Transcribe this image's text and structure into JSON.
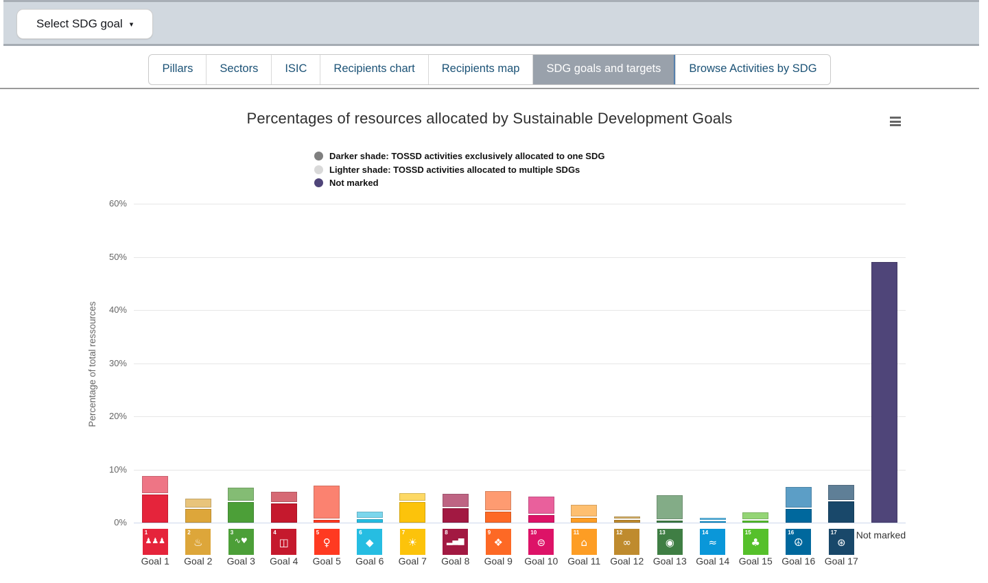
{
  "toolbar": {
    "select_sdg_label": "Select SDG goal",
    "caret": "▾"
  },
  "tabs": {
    "items": [
      {
        "label": "Pillars",
        "active": false
      },
      {
        "label": "Sectors",
        "active": false
      },
      {
        "label": "ISIC",
        "active": false
      },
      {
        "label": "Recipients chart",
        "active": false
      },
      {
        "label": "Recipients map",
        "active": false
      },
      {
        "label": "SDG goals and targets",
        "active": true
      },
      {
        "label": "Browse Activities by SDG",
        "active": false
      }
    ]
  },
  "chart": {
    "title": "Percentages of resources allocated by Sustainable Development Goals",
    "menu_icon": "hamburger-menu",
    "legend_items": [
      {
        "label": "Darker shade: TOSSD activities exclusively allocated to one SDG",
        "color": "#7f7f7f"
      },
      {
        "label": "Lighter shade: TOSSD activities allocated to multiple SDGs",
        "color": "#d9d9d9"
      },
      {
        "label": "Not marked",
        "color": "#4f4579"
      }
    ],
    "y_axis_title": "Percentage of total ressources",
    "y_ticks": [
      "0%",
      "10%",
      "20%",
      "30%",
      "40%",
      "50%",
      "60%"
    ]
  },
  "chart_data": {
    "type": "bar",
    "stacked": true,
    "title": "Percentages of resources allocated by Sustainable Development Goals",
    "xlabel": "",
    "ylabel": "Percentage of total ressources",
    "ylim": [
      0,
      60
    ],
    "unit": "percent of total resources",
    "legend_position": "top",
    "grid": true,
    "categories": [
      "Goal 1",
      "Goal 2",
      "Goal 3",
      "Goal 4",
      "Goal 5",
      "Goal 6",
      "Goal 7",
      "Goal 8",
      "Goal 9",
      "Goal 10",
      "Goal 11",
      "Goal 12",
      "Goal 13",
      "Goal 14",
      "Goal 15",
      "Goal 16",
      "Goal 17",
      "Not marked"
    ],
    "series": [
      {
        "name": "Darker shade: TOSSD activities exclusively allocated to one SDG",
        "values": [
          5.3,
          2.6,
          3.9,
          3.6,
          0.5,
          0.6,
          3.9,
          2.7,
          2.1,
          1.4,
          0.9,
          0.5,
          0.4,
          0.3,
          0.4,
          2.6,
          4.0,
          0
        ]
      },
      {
        "name": "Lighter shade: TOSSD activities allocated to multiple SDGs",
        "values": [
          3.2,
          1.7,
          2.4,
          1.9,
          6.2,
          1.2,
          1.4,
          2.4,
          3.6,
          3.2,
          2.2,
          0.4,
          4.5,
          0.3,
          1.3,
          3.9,
          2.9,
          0
        ]
      },
      {
        "name": "Not marked",
        "values": [
          0,
          0,
          0,
          0,
          0,
          0,
          0,
          0,
          0,
          0,
          0,
          0,
          0,
          0,
          0,
          0,
          0,
          49.0
        ]
      }
    ],
    "goals": [
      {
        "label": "Goal 1",
        "number": "1",
        "icon": "sdg1-people-icon",
        "glyph": "♟♟♟",
        "tile_color": "#E5243B",
        "darker": 5.3,
        "lighter": 3.2,
        "darker_color": "#E5243B",
        "lighter_color": "#EE7585"
      },
      {
        "label": "Goal 2",
        "number": "2",
        "icon": "sdg2-food-bowl-icon",
        "glyph": "♨",
        "tile_color": "#DDA63A",
        "darker": 2.6,
        "lighter": 1.7,
        "darker_color": "#DDA63A",
        "lighter_color": "#E8C47B"
      },
      {
        "label": "Goal 3",
        "number": "3",
        "icon": "sdg3-heartbeat-icon",
        "glyph": "∿♥",
        "tile_color": "#4C9F38",
        "darker": 3.9,
        "lighter": 2.4,
        "darker_color": "#4C9F38",
        "lighter_color": "#84BC74"
      },
      {
        "label": "Goal 4",
        "number": "4",
        "icon": "sdg4-open-book-icon",
        "glyph": "◫",
        "tile_color": "#C5192D",
        "darker": 3.6,
        "lighter": 1.9,
        "darker_color": "#C5192D",
        "lighter_color": "#D66974"
      },
      {
        "label": "Goal 5",
        "number": "5",
        "icon": "sdg5-gender-icon",
        "glyph": "♀",
        "tile_color": "#FF3A21",
        "darker": 0.5,
        "lighter": 6.2,
        "darker_color": "#FF3A21",
        "lighter_color": "#FB8270"
      },
      {
        "label": "Goal 6",
        "number": "6",
        "icon": "sdg6-water-drop-icon",
        "glyph": "◆",
        "tile_color": "#26BDE2",
        "darker": 0.6,
        "lighter": 1.2,
        "darker_color": "#26BDE2",
        "lighter_color": "#7BD6EC"
      },
      {
        "label": "Goal 7",
        "number": "7",
        "icon": "sdg7-sun-energy-icon",
        "glyph": "☀",
        "tile_color": "#FCC30B",
        "darker": 3.9,
        "lighter": 1.4,
        "darker_color": "#FCC30B",
        "lighter_color": "#FDD965"
      },
      {
        "label": "Goal 8",
        "number": "8",
        "icon": "sdg8-growth-chart-icon",
        "glyph": "▂▄▆",
        "tile_color": "#A21942",
        "darker": 2.7,
        "lighter": 2.4,
        "darker_color": "#A21942",
        "lighter_color": "#BE6483"
      },
      {
        "label": "Goal 9",
        "number": "9",
        "icon": "sdg9-industry-icon",
        "glyph": "❖",
        "tile_color": "#FD6925",
        "darker": 2.1,
        "lighter": 3.6,
        "darker_color": "#FD6925",
        "lighter_color": "#FE9B71"
      },
      {
        "label": "Goal 10",
        "number": "10",
        "icon": "sdg10-equality-icon",
        "glyph": "⊜",
        "tile_color": "#DD1367",
        "darker": 1.4,
        "lighter": 3.2,
        "darker_color": "#DD1367",
        "lighter_color": "#E9609C"
      },
      {
        "label": "Goal 11",
        "number": "11",
        "icon": "sdg11-city-icon",
        "glyph": "⌂",
        "tile_color": "#FD9D24",
        "darker": 0.9,
        "lighter": 2.2,
        "darker_color": "#FD9D24",
        "lighter_color": "#FEBF70"
      },
      {
        "label": "Goal 12",
        "number": "12",
        "icon": "sdg12-infinity-icon",
        "glyph": "∞",
        "tile_color": "#BF8B2E",
        "darker": 0.5,
        "lighter": 0.4,
        "darker_color": "#BF8B2E",
        "lighter_color": "#D5B067"
      },
      {
        "label": "Goal 13",
        "number": "13",
        "icon": "sdg13-climate-eye-icon",
        "glyph": "◉",
        "tile_color": "#3F7E44",
        "darker": 0.4,
        "lighter": 4.5,
        "darker_color": "#3F7E44",
        "lighter_color": "#83AC87"
      },
      {
        "label": "Goal 14",
        "number": "14",
        "icon": "sdg14-fish-waves-icon",
        "glyph": "≈",
        "tile_color": "#0A97D9",
        "darker": 0.3,
        "lighter": 0.3,
        "darker_color": "#0A97D9",
        "lighter_color": "#61BBE6"
      },
      {
        "label": "Goal 15",
        "number": "15",
        "icon": "sdg15-tree-icon",
        "glyph": "♣",
        "tile_color": "#56C02B",
        "darker": 0.4,
        "lighter": 1.3,
        "darker_color": "#56C02B",
        "lighter_color": "#94D575"
      },
      {
        "label": "Goal 16",
        "number": "16",
        "icon": "sdg16-peace-dove-icon",
        "glyph": "☮",
        "tile_color": "#00689D",
        "darker": 2.6,
        "lighter": 3.9,
        "darker_color": "#00689D",
        "lighter_color": "#5C9EC6"
      },
      {
        "label": "Goal 17",
        "number": "17",
        "icon": "sdg17-partnership-icon",
        "glyph": "⊛",
        "tile_color": "#19486A",
        "darker": 4.0,
        "lighter": 2.9,
        "darker_color": "#19486A",
        "lighter_color": "#5F7F97"
      }
    ],
    "not_marked": {
      "label": "Not marked",
      "value": 49.0,
      "color": "#4F4579"
    }
  }
}
